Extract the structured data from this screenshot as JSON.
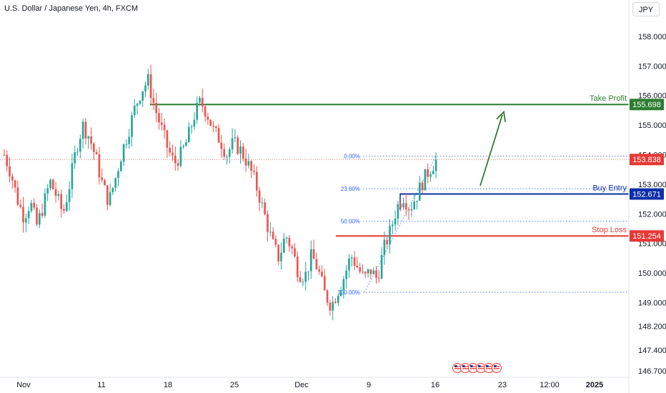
{
  "header": {
    "title": "U.S. Dollar / Japanese Yen, 4h, FXCM",
    "currency": "JPY"
  },
  "colors": {
    "up": "#26a69a",
    "down": "#ef5350",
    "take_profit": "#2e7d32",
    "buy_entry": "#0d2fa8",
    "stop_loss": "#e53935",
    "fib": "#2962ff",
    "last_price": "#e53935"
  },
  "chart_data": {
    "type": "candlestick",
    "symbol": "USDJPY",
    "timeframe": "4h",
    "ylim": [
      146.55,
      158.65
    ],
    "y_ticks": [
      "158.000",
      "157.000",
      "156.000",
      "155.000",
      "154.000",
      "153.000",
      "152.000",
      "151.000",
      "150.000",
      "149.000",
      "148.200",
      "147.400",
      "146.700"
    ],
    "x_ticks": [
      "Nov",
      "11",
      "18",
      "25",
      "Dec",
      "9",
      "16",
      "23",
      "12:00",
      "2025"
    ],
    "last_price": "153.838",
    "levels": [
      {
        "name": "Take Profit",
        "value": "155.698",
        "color": "#2e7d32"
      },
      {
        "name": "Buy Entry",
        "value": "152.671",
        "color": "#0d2fa8"
      },
      {
        "name": "Stop Loss",
        "value": "151.254",
        "color": "#e53935"
      }
    ],
    "fib_levels": [
      {
        "label": "0.00%",
        "value": 153.95
      },
      {
        "label": "23.60%",
        "value": 152.85
      },
      {
        "label": "50.00%",
        "value": 151.75
      },
      {
        "label": "100.00%",
        "value": 149.35
      }
    ],
    "close_path": [
      154.0,
      153.4,
      152.5,
      151.9,
      152.4,
      151.6,
      152.3,
      153.1,
      152.6,
      152.0,
      153.0,
      154.2,
      155.0,
      154.6,
      153.9,
      153.0,
      152.4,
      153.2,
      154.1,
      154.8,
      155.6,
      156.2,
      156.5,
      155.6,
      154.9,
      154.2,
      153.7,
      154.0,
      154.5,
      155.3,
      155.8,
      155.4,
      154.8,
      154.5,
      154.0,
      154.4,
      154.2,
      153.8,
      153.3,
      152.6,
      151.8,
      151.0,
      150.5,
      151.3,
      150.8,
      150.0,
      149.9,
      150.6,
      150.1,
      149.3,
      148.9,
      149.4,
      149.9,
      150.6,
      150.2,
      149.8,
      150.1,
      149.8,
      150.8,
      151.4,
      152.2,
      152.6,
      152.2,
      152.6,
      153.1,
      153.5,
      153.8
    ]
  },
  "annotations": {
    "arrow": "upward trend arrow",
    "icons": [
      "calendar-event-icons"
    ]
  }
}
